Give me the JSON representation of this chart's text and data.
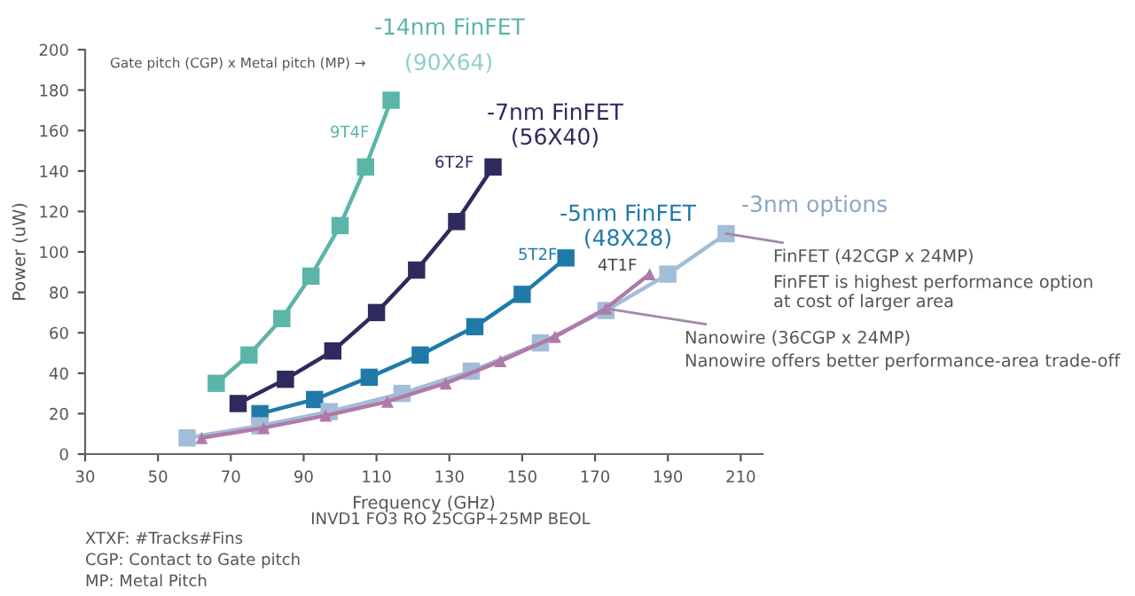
{
  "chart_data": {
    "type": "line",
    "xlabel": "Frequency (GHz)",
    "ylabel": "Power (uW)",
    "xlim": [
      30,
      216
    ],
    "xticks": [
      30,
      50,
      70,
      90,
      110,
      130,
      150,
      170,
      190,
      210
    ],
    "ylim": [
      0,
      200
    ],
    "yticks": [
      0,
      20,
      40,
      60,
      80,
      100,
      120,
      140,
      160,
      180,
      200
    ],
    "grid": false,
    "legend": false,
    "marker": "square",
    "line_style": "solid",
    "series": [
      {
        "name": "9T4F",
        "color": "#5bb5a8",
        "x": [
          66,
          75,
          84,
          92,
          100,
          107,
          114
        ],
        "values": [
          35,
          49,
          67,
          88,
          113,
          142,
          175
        ]
      },
      {
        "name": "6T2F",
        "color": "#2e2a5e",
        "x": [
          72,
          85,
          98,
          110,
          121,
          132,
          142
        ],
        "values": [
          25,
          37,
          51,
          70,
          91,
          115,
          142
        ]
      },
      {
        "name": "5T2F",
        "color": "#1f7aa8",
        "x": [
          78,
          93,
          108,
          122,
          137,
          150,
          162
        ],
        "values": [
          20,
          27,
          38,
          49,
          63,
          79,
          97
        ]
      },
      {
        "color": "#a3bcd8",
        "x": [
          58,
          78,
          97,
          117,
          136,
          155,
          173,
          190,
          206
        ],
        "values": [
          8,
          14,
          21,
          30,
          41,
          55,
          71,
          89,
          109
        ]
      },
      {
        "color": "#b07aa8",
        "marker": "triangle",
        "x": [
          62,
          79,
          96,
          113,
          129,
          144,
          159,
          173,
          185
        ],
        "values": [
          8,
          13,
          19,
          26,
          35,
          46,
          58,
          72,
          89
        ]
      }
    ],
    "annotations": [
      "-14nm FinFET",
      "(90X64)",
      "Gate pitch (CGP) x Metal pitch (MP) →",
      "-7nm FinFET\n(56X40)",
      "-5nm FinFET\n(48X28)",
      "-3nm options",
      "4T1F",
      "FinFET is highest performance option\nat cost of larger area",
      "Nanowire offers better performance-area trade-off",
      {
        "text": "FinFET (42CGP x 24MP)",
        "x": 206,
        "y": 109
      },
      {
        "text": "Nanowire (36CGP x 24MP)",
        "x": 173,
        "y": 72
      },
      "INVD1 FO3 RO 25CGP+25MP BEOL",
      "XTXF: #Tracks#Fins",
      "CGP: Contact to Gate pitch",
      "MP: Metal Pitch"
    ]
  }
}
